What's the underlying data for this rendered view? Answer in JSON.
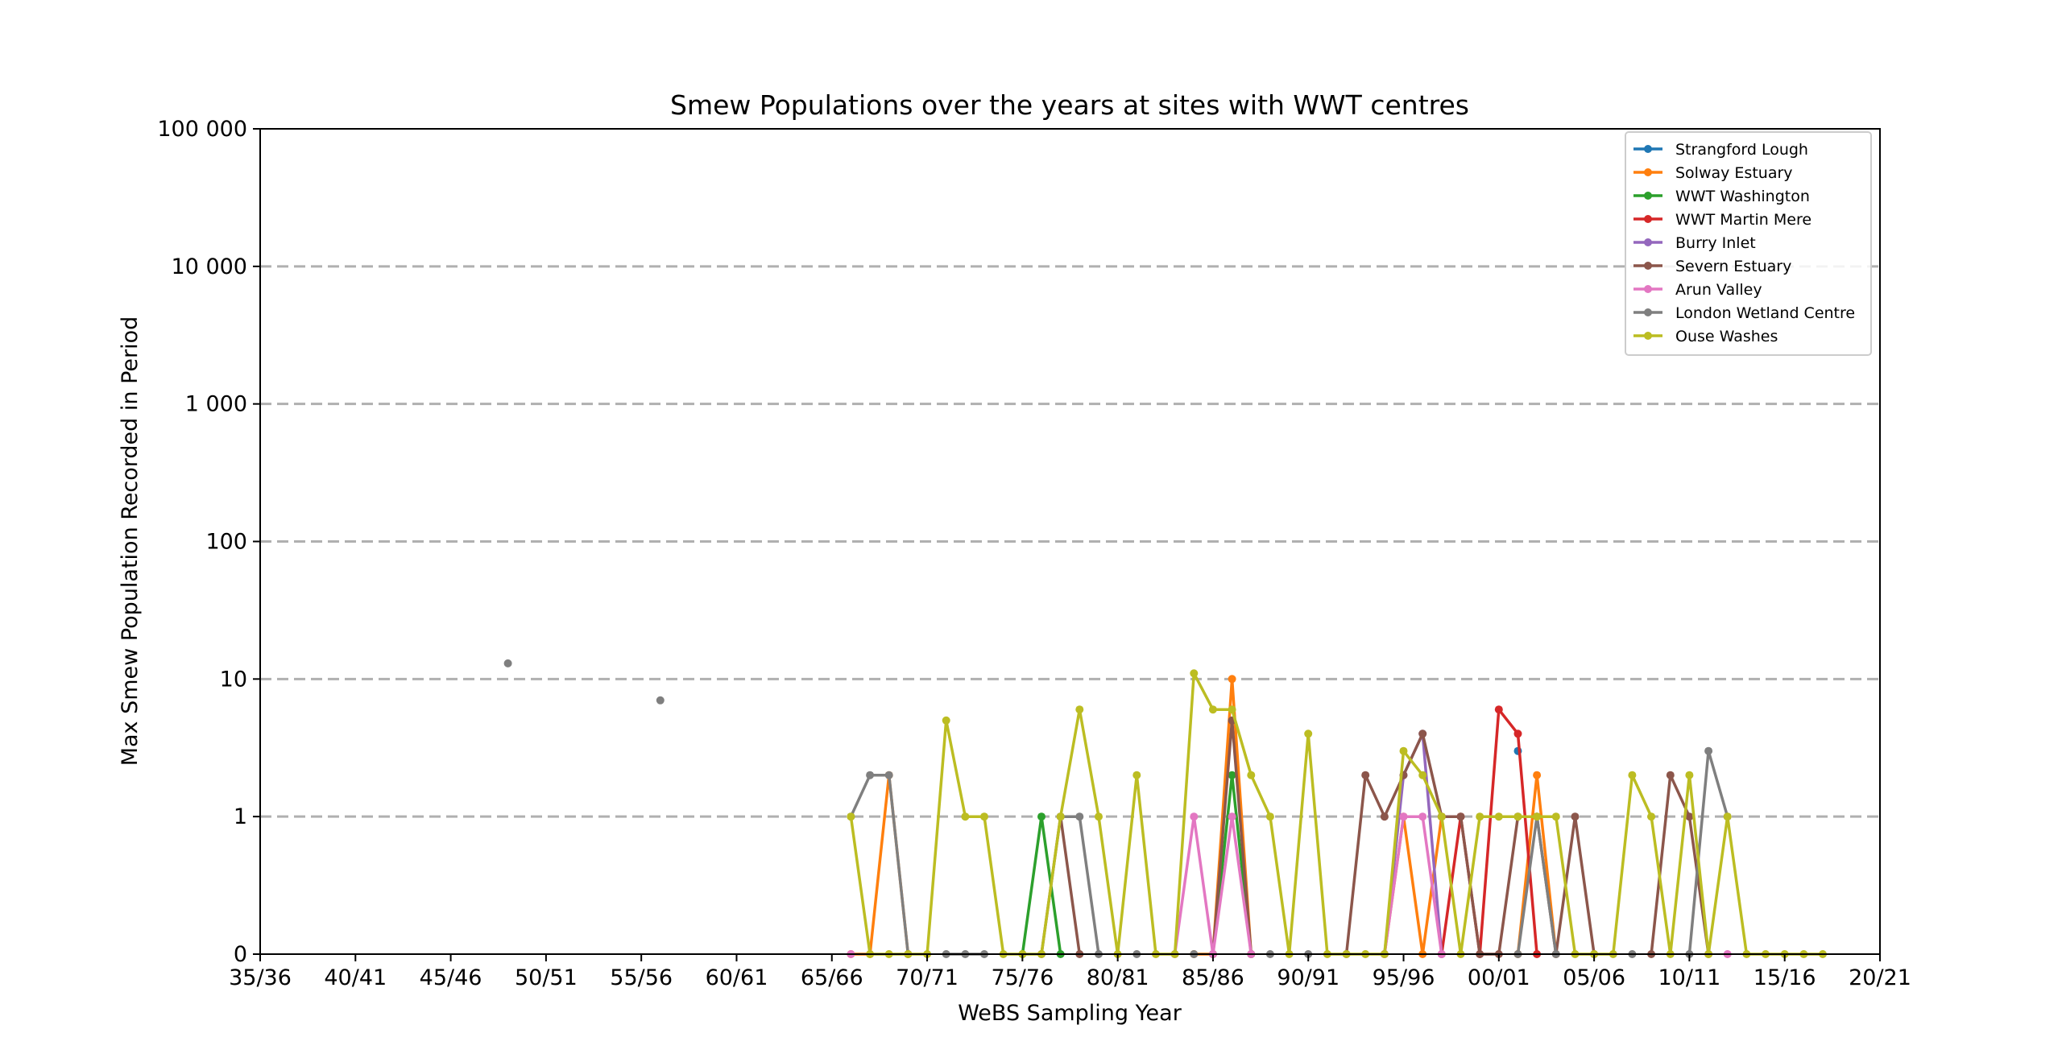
{
  "chart_data": {
    "type": "line",
    "title": "Smew Populations over the years at sites with WWT centres",
    "xlabel": "WeBS Sampling Year",
    "ylabel": "Max Smew Population Recorded in Period",
    "x_tick_labels": [
      "35/36",
      "40/41",
      "45/46",
      "50/51",
      "55/56",
      "60/61",
      "65/66",
      "70/71",
      "75/76",
      "80/81",
      "85/86",
      "90/91",
      "95/96",
      "00/01",
      "05/06",
      "10/11",
      "15/16",
      "20/21"
    ],
    "y_tick_labels": [
      "0",
      "1",
      "10",
      "100",
      "1 000",
      "10 000",
      "100 000"
    ],
    "y_scale": "symlog",
    "y_ticks": [
      0,
      1,
      10,
      100,
      1000,
      10000,
      100000
    ],
    "ylim": [
      0,
      100000
    ],
    "xlim": [
      "35/36",
      "20/21"
    ],
    "grid": "horizontal dashed",
    "legend_position": "top-right",
    "series": [
      {
        "name": "Strangford Lough",
        "color": "#1f77b4",
        "x": [
          "01/02"
        ],
        "y": [
          3
        ]
      },
      {
        "name": "Solway Estuary",
        "color": "#ff7f0e",
        "x": [
          "66/67",
          "67/68",
          "68/69",
          "69/70",
          "84/85",
          "85/86",
          "86/87",
          "87/88",
          "94/95",
          "95/96",
          "96/97",
          "97/98",
          "01/02",
          "02/03",
          "03/04"
        ],
        "y": [
          0,
          0,
          2,
          0,
          0,
          0,
          10,
          0,
          0,
          1,
          0,
          1,
          0,
          2,
          0
        ]
      },
      {
        "name": "WWT Washington",
        "color": "#2ca02c",
        "x": [
          "75/76",
          "76/77",
          "77/78",
          "85/86",
          "86/87",
          "87/88"
        ],
        "y": [
          0,
          1,
          0,
          0,
          2,
          0
        ]
      },
      {
        "name": "WWT Martin Mere",
        "color": "#d62728",
        "x": [
          "97/98",
          "98/99",
          "99/00",
          "00/01",
          "01/02",
          "02/03"
        ],
        "y": [
          0,
          1,
          0,
          6,
          4,
          0
        ]
      },
      {
        "name": "Burry Inlet",
        "color": "#9467bd",
        "x": [
          "94/95",
          "95/96",
          "96/97",
          "97/98"
        ],
        "y": [
          0,
          2,
          4,
          0
        ]
      },
      {
        "name": "Severn Estuary",
        "color": "#8c564b",
        "x": [
          "76/77",
          "77/78",
          "78/79",
          "85/86",
          "86/87",
          "87/88",
          "92/93",
          "93/94",
          "94/95",
          "95/96",
          "96/97",
          "97/98",
          "98/99",
          "99/00",
          "00/01",
          "01/02",
          "02/03",
          "03/04",
          "04/05",
          "05/06",
          "08/09",
          "09/10",
          "10/11",
          "11/12"
        ],
        "y": [
          0,
          1,
          0,
          0,
          5,
          0,
          0,
          2,
          1,
          2,
          4,
          1,
          1,
          0,
          0,
          1,
          1,
          0,
          1,
          0,
          0,
          2,
          1,
          0
        ]
      },
      {
        "name": "Arun Valley",
        "color": "#e377c2",
        "x": [
          "66/67",
          "83/84",
          "84/85",
          "85/86",
          "86/87",
          "87/88",
          "94/95",
          "95/96",
          "96/97",
          "97/98",
          "12/13"
        ],
        "y": [
          0,
          0,
          1,
          0,
          1,
          0,
          0,
          1,
          1,
          0,
          0
        ]
      },
      {
        "name": "London Wetland Centre",
        "color": "#7f7f7f",
        "x": [
          "48/49",
          "56/57",
          "66/67",
          "67/68",
          "68/69",
          "69/70",
          "71/72",
          "72/73",
          "73/74",
          "77/78",
          "78/79",
          "79/80",
          "81/82",
          "84/85",
          "88/89",
          "90/91",
          "01/02",
          "02/03",
          "03/04",
          "07/08",
          "10/11",
          "11/12",
          "12/13"
        ],
        "y": [
          13,
          7,
          1,
          2,
          2,
          0,
          0,
          0,
          0,
          1,
          1,
          0,
          0,
          0,
          0,
          0,
          0,
          1,
          0,
          0,
          0,
          3,
          1
        ]
      },
      {
        "name": "Ouse Washes",
        "color": "#bcbd22",
        "x": [
          "66/67",
          "67/68",
          "68/69",
          "69/70",
          "70/71",
          "71/72",
          "72/73",
          "73/74",
          "74/75",
          "75/76",
          "76/77",
          "77/78",
          "78/79",
          "79/80",
          "80/81",
          "81/82",
          "82/83",
          "83/84",
          "84/85",
          "85/86",
          "86/87",
          "87/88",
          "88/89",
          "89/90",
          "90/91",
          "91/92",
          "92/93",
          "93/94",
          "94/95",
          "95/96",
          "96/97",
          "97/98",
          "98/99",
          "99/00",
          "00/01",
          "01/02",
          "02/03",
          "03/04",
          "04/05",
          "05/06",
          "06/07",
          "07/08",
          "08/09",
          "09/10",
          "10/11",
          "11/12",
          "12/13",
          "13/14",
          "14/15",
          "15/16",
          "16/17",
          "17/18"
        ],
        "y": [
          1,
          0,
          0,
          0,
          0,
          5,
          1,
          1,
          0,
          0,
          0,
          1,
          6,
          1,
          0,
          2,
          0,
          0,
          11,
          6,
          6,
          2,
          1,
          0,
          4,
          0,
          0,
          0,
          0,
          3,
          2,
          1,
          0,
          1,
          1,
          1,
          1,
          1,
          0,
          0,
          0,
          2,
          1,
          0,
          2,
          0,
          1,
          0,
          0,
          0,
          0,
          0
        ]
      }
    ]
  }
}
